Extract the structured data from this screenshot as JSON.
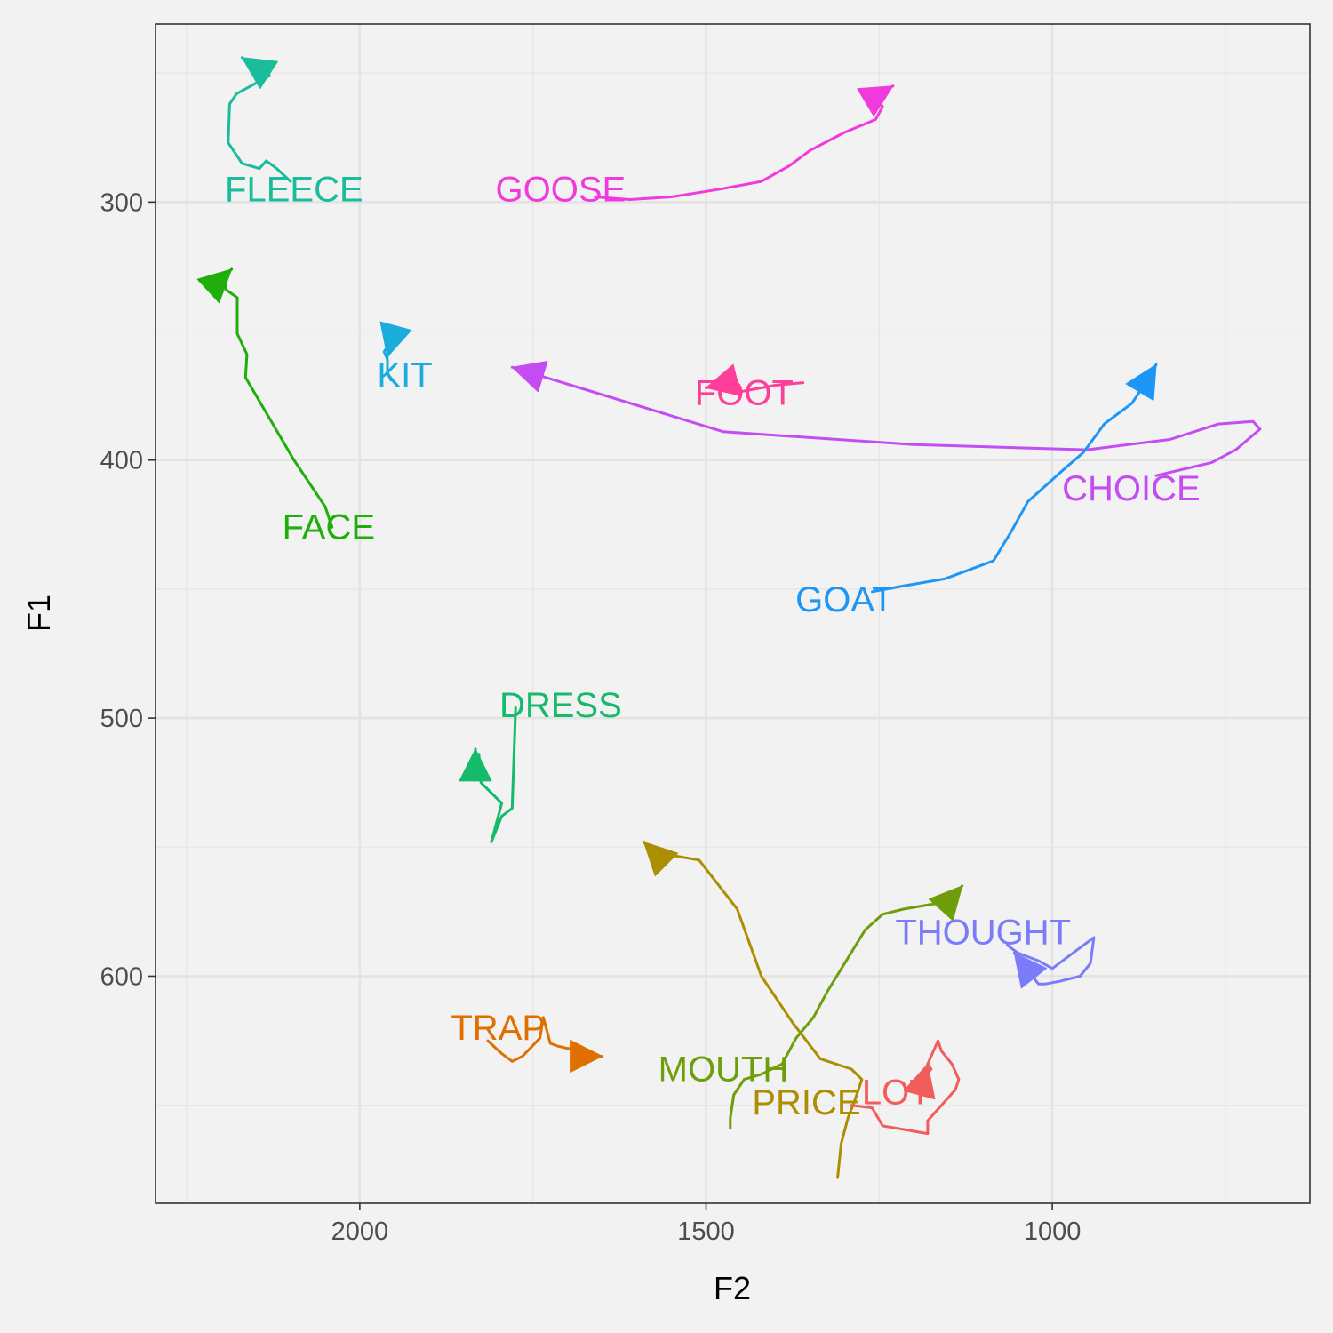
{
  "chart_data": {
    "type": "line",
    "title": "",
    "xlabel": "F2",
    "ylabel": "F1",
    "x_reversed": true,
    "y_reversed": true,
    "xlim": [
      2295,
      628
    ],
    "ylim": [
      231,
      688
    ],
    "x_ticks": [
      2000,
      1500,
      1000
    ],
    "y_ticks": [
      300,
      400,
      500,
      600
    ],
    "grid": true,
    "legend": "none",
    "panel_background": "#f2f2f2",
    "series": [
      {
        "name": "FLEECE",
        "color": "#1ABC9C",
        "label_at": [
          2095,
          296
        ],
        "x": [
          2100,
          2120,
          2135,
          2145,
          2170,
          2190,
          2188,
          2178,
          2130,
          2170
        ],
        "y": [
          292,
          287,
          284,
          287,
          285,
          277,
          262,
          258,
          251,
          244
        ]
      },
      {
        "name": "GOOSE",
        "color": "#F13ADB",
        "label_at": [
          1710,
          296
        ],
        "x": [
          1660,
          1610,
          1550,
          1480,
          1420,
          1380,
          1350,
          1300,
          1255,
          1245,
          1255,
          1230
        ],
        "y": [
          298,
          299,
          298,
          295,
          292,
          286,
          280,
          273,
          268,
          263,
          259,
          255
        ]
      },
      {
        "name": "FACE",
        "color": "#1FAE0C",
        "label_at": [
          2045,
          427
        ],
        "x": [
          2040,
          2050,
          2095,
          2130,
          2165,
          2163,
          2177,
          2177,
          2193,
          2193,
          2185
        ],
        "y": [
          426,
          418,
          400,
          384,
          368,
          359,
          351,
          337,
          334,
          328,
          326
        ]
      },
      {
        "name": "KIT",
        "color": "#1AADDB",
        "label_at": [
          1935,
          368
        ],
        "x": [
          1955,
          1960,
          1960,
          1965,
          1955,
          1952,
          1960
        ],
        "y": [
          369,
          366,
          361,
          358,
          354,
          352,
          360
        ]
      },
      {
        "name": "CHOICE",
        "color": "#C54BF2",
        "label_at": [
          886,
          412
        ],
        "x": [
          850,
          770,
          735,
          700,
          710,
          760,
          830,
          950,
          1200,
          1475,
          1780
        ],
        "y": [
          406,
          401,
          396,
          388,
          385,
          386,
          392,
          396,
          394,
          389,
          364
        ]
      },
      {
        "name": "FOOT",
        "color": "#FF3E9A",
        "label_at": [
          1445,
          375
        ],
        "x": [
          1360,
          1400,
          1420,
          1460,
          1470,
          1460,
          1470,
          1500
        ],
        "y": [
          370,
          371,
          372,
          374,
          373,
          371,
          370,
          372
        ]
      },
      {
        "name": "GOAT",
        "color": "#1D96F5",
        "label_at": [
          1300,
          455
        ],
        "x": [
          1260,
          1220,
          1155,
          1085,
          1060,
          1035,
          985,
          955,
          925,
          885,
          870,
          850
        ],
        "y": [
          451,
          449,
          446,
          439,
          428,
          416,
          404,
          397,
          386,
          378,
          372,
          363
        ]
      },
      {
        "name": "DRESS",
        "color": "#15BA6B",
        "label_at": [
          1710,
          496
        ],
        "x": [
          1775,
          1780,
          1795,
          1810,
          1795,
          1825,
          1828,
          1833,
          1833
        ],
        "y": [
          496,
          535,
          538,
          548,
          533,
          525,
          514,
          517,
          512
        ]
      },
      {
        "name": "PRICE",
        "color": "#AC8E03",
        "label_at": [
          1355,
          650
        ],
        "x": [
          1310,
          1305,
          1295,
          1285,
          1275,
          1290,
          1335,
          1375,
          1420,
          1455,
          1510,
          1575,
          1590
        ],
        "y": [
          678,
          665,
          655,
          648,
          640,
          636,
          632,
          618,
          600,
          574,
          555,
          552,
          548
        ]
      },
      {
        "name": "MOUTH",
        "color": "#6E9E0B",
        "label_at": [
          1475,
          637
        ],
        "x": [
          1465,
          1465,
          1460,
          1445,
          1420,
          1390,
          1370,
          1345,
          1325,
          1270,
          1245,
          1215,
          1150,
          1130
        ],
        "y": [
          659,
          655,
          646,
          640,
          638,
          634,
          624,
          616,
          606,
          582,
          576,
          574,
          571,
          565
        ]
      },
      {
        "name": "LOT",
        "color": "#F15D5B",
        "label_at": [
          1225,
          646
        ],
        "x": [
          1290,
          1260,
          1245,
          1180,
          1180,
          1140,
          1135,
          1145,
          1160,
          1165,
          1180,
          1175,
          1185,
          1180
        ],
        "y": [
          650,
          651,
          658,
          661,
          656,
          644,
          640,
          634,
          629,
          625,
          634,
          636,
          639,
          634
        ]
      },
      {
        "name": "TRAP",
        "color": "#E06F02",
        "label_at": [
          1800,
          621
        ],
        "x": [
          1815,
          1795,
          1780,
          1765,
          1740,
          1735,
          1725,
          1715,
          1700,
          1680,
          1665,
          1650
        ],
        "y": [
          625,
          630,
          633,
          631,
          624,
          616,
          626,
          627,
          628,
          628,
          631,
          631
        ]
      },
      {
        "name": "THOUGHT",
        "color": "#7B7CF9",
        "label_at": [
          1100,
          584
        ],
        "x": [
          1065,
          1050,
          1020,
          1000,
          980,
          940,
          945,
          960,
          990,
          1010,
          1020,
          1055
        ],
        "y": [
          588,
          591,
          594,
          597,
          593,
          585,
          595,
          600,
          602,
          603,
          603,
          591
        ]
      }
    ]
  }
}
